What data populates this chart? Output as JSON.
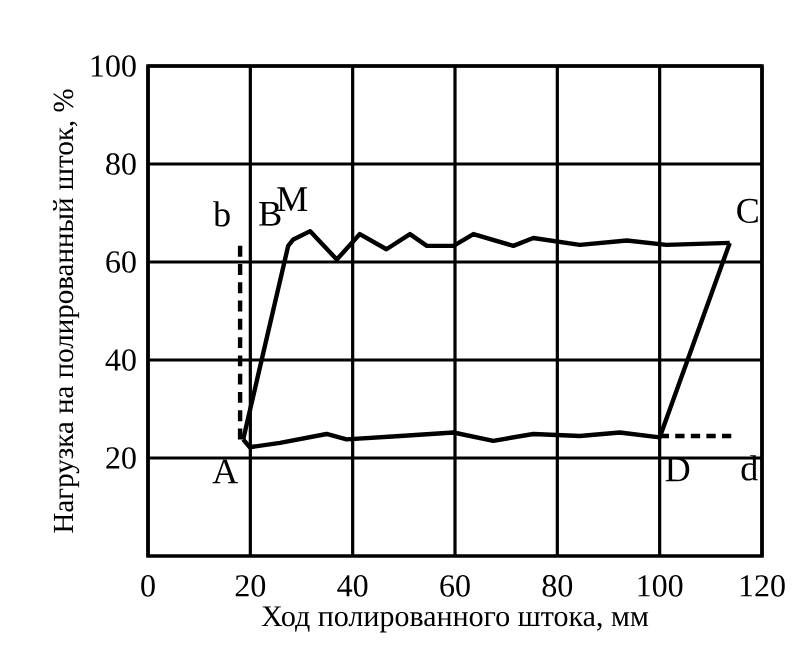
{
  "chart_data": {
    "type": "line",
    "xlabel": "Ход полированного штока, мм",
    "ylabel": "Нагрузка на полированный шток, %",
    "xlim": [
      0,
      120
    ],
    "ylim": [
      0,
      100
    ],
    "xticks": [
      0,
      20,
      40,
      60,
      80,
      100,
      120
    ],
    "yticks": [
      20,
      40,
      60,
      80,
      100
    ],
    "grid": true,
    "legend": false,
    "marker": "none",
    "series": [
      {
        "color": "#000000",
        "line_style": "solid",
        "x": [
          18.6,
          19.9,
          25.8,
          34.9,
          38.8,
          49.3,
          59.7,
          67.5,
          75.3,
          84.4,
          92.2,
          100,
          113.7
        ],
        "values": [
          23.8,
          22.2,
          23.1,
          24.9,
          23.8,
          24.5,
          25.2,
          23.5,
          24.9,
          24.5,
          25.2,
          24.2,
          63.9
        ]
      },
      {
        "color": "#000000",
        "line_style": "solid",
        "x": [
          18.6,
          27.4,
          28.4,
          31.7,
          36.9,
          41.4,
          46.6,
          51.2,
          54.5,
          59.7,
          63.6,
          71.4,
          75.3,
          84.4,
          93.6,
          101.3,
          113.7
        ],
        "values": [
          23.8,
          63.3,
          64.6,
          66.3,
          60.5,
          65.7,
          62.6,
          65.7,
          63.3,
          63.3,
          65.7,
          63.3,
          64.9,
          63.5,
          64.4,
          63.5,
          63.9
        ]
      },
      {
        "color": "#000000",
        "line_style": "dashed",
        "x": [
          18.0,
          18.0
        ],
        "values": [
          23.8,
          63.3
        ]
      },
      {
        "color": "#000000",
        "line_style": "dashed",
        "x": [
          100,
          114
        ],
        "values": [
          24.5,
          24.5
        ]
      }
    ],
    "annotations": [
      {
        "text": "A",
        "x": 18.6,
        "y": 23.8
      },
      {
        "text": "b",
        "x": 18.0,
        "y": 63.3
      },
      {
        "text": "B",
        "x": 27.4,
        "y": 63.3
      },
      {
        "text": "M",
        "x": 31.7,
        "y": 66.3
      },
      {
        "text": "C",
        "x": 113.7,
        "y": 63.9
      },
      {
        "text": "d",
        "x": 114,
        "y": 24.5
      },
      {
        "text": "D",
        "x": 100,
        "y": 24.2
      }
    ]
  }
}
